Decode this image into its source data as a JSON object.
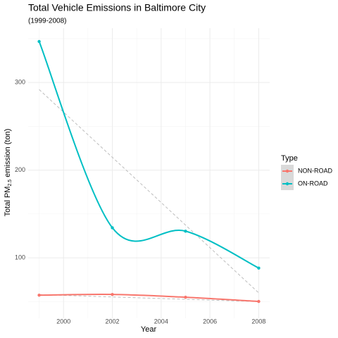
{
  "chart_data": {
    "type": "line",
    "title": "Total Vehicle Emissions in Baltimore City",
    "subtitle": "(1999-2008)",
    "xlabel": "Year",
    "ylabel": [
      "Total PM",
      "2.5",
      " emission (ton)"
    ],
    "legend_title": "Type",
    "x": [
      1999,
      2002,
      2005,
      2008
    ],
    "series": [
      {
        "name": "NON-ROAD",
        "color": "#f8766d",
        "values": [
          57.4,
          58.2,
          55.0,
          50.2
        ],
        "trend": [
          58,
          50
        ]
      },
      {
        "name": "ON-ROAD",
        "color": "#00bfc4",
        "values": [
          346.8,
          134.3,
          130.4,
          88.3
        ],
        "trend": [
          292,
          60
        ]
      }
    ],
    "xlim": [
      1998.55,
      2008.45
    ],
    "xticks": [
      2000,
      2002,
      2004,
      2006,
      2008
    ],
    "x_minor_ticks": [
      1999,
      2001,
      2003,
      2005,
      2007
    ],
    "ylim": [
      31,
      362
    ],
    "yticks": [
      100,
      200,
      300
    ],
    "y_minor_ticks": [
      50,
      150,
      250,
      350
    ],
    "grid": true,
    "legend": "right"
  }
}
